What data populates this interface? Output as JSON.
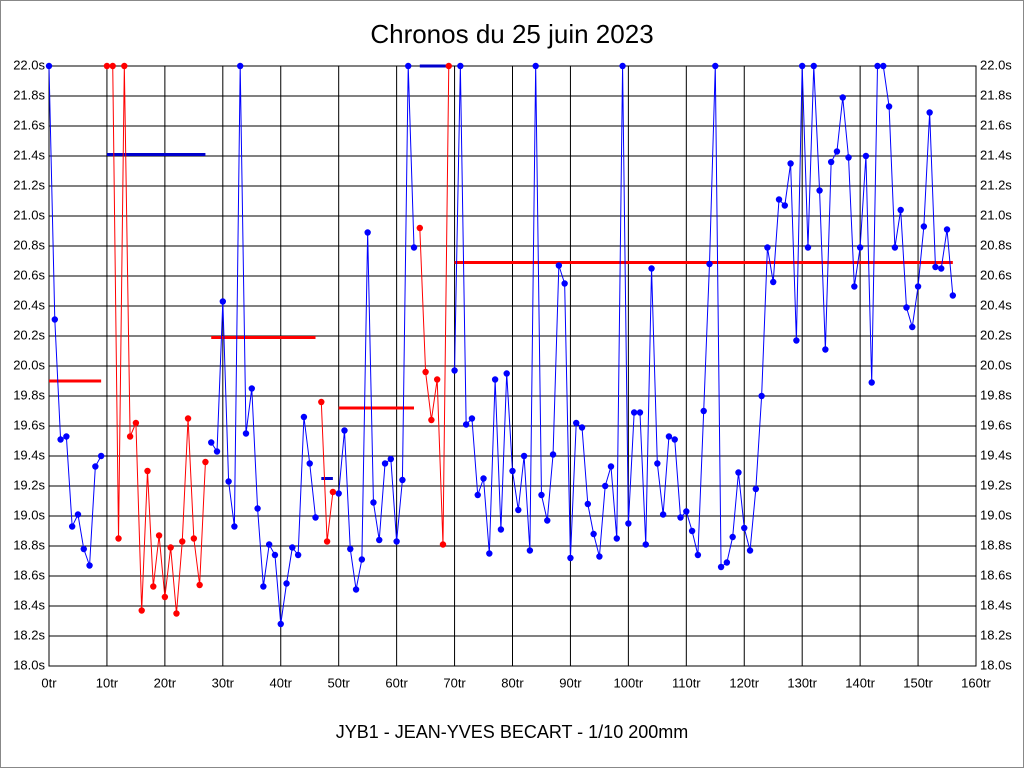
{
  "chart_data": {
    "type": "line",
    "title": "Chronos du 25 juin 2023",
    "footer": "JYB1 - JEAN-YVES BECART - 1/10 200mm",
    "grid": true,
    "xlim": [
      0,
      160
    ],
    "ylim": [
      18.0,
      22.0
    ],
    "xticks": [
      {
        "value": 0,
        "label": "0tr"
      },
      {
        "value": 10,
        "label": "10tr"
      },
      {
        "value": 20,
        "label": "20tr"
      },
      {
        "value": 30,
        "label": "30tr"
      },
      {
        "value": 40,
        "label": "40tr"
      },
      {
        "value": 50,
        "label": "50tr"
      },
      {
        "value": 60,
        "label": "60tr"
      },
      {
        "value": 70,
        "label": "70tr"
      },
      {
        "value": 80,
        "label": "80tr"
      },
      {
        "value": 90,
        "label": "90tr"
      },
      {
        "value": 100,
        "label": "100tr"
      },
      {
        "value": 110,
        "label": "110tr"
      },
      {
        "value": 120,
        "label": "120tr"
      },
      {
        "value": 130,
        "label": "130tr"
      },
      {
        "value": 140,
        "label": "140tr"
      },
      {
        "value": 150,
        "label": "150tr"
      },
      {
        "value": 160,
        "label": "160tr"
      }
    ],
    "yticks": [
      {
        "value": 18.0,
        "label": "18.0s"
      },
      {
        "value": 18.2,
        "label": "18.2s"
      },
      {
        "value": 18.4,
        "label": "18.4s"
      },
      {
        "value": 18.6,
        "label": "18.6s"
      },
      {
        "value": 18.8,
        "label": "18.8s"
      },
      {
        "value": 19.0,
        "label": "19.0s"
      },
      {
        "value": 19.2,
        "label": "19.2s"
      },
      {
        "value": 19.4,
        "label": "19.4s"
      },
      {
        "value": 19.6,
        "label": "19.6s"
      },
      {
        "value": 19.8,
        "label": "19.8s"
      },
      {
        "value": 20.0,
        "label": "20.0s"
      },
      {
        "value": 20.2,
        "label": "20.2s"
      },
      {
        "value": 20.4,
        "label": "20.4s"
      },
      {
        "value": 20.6,
        "label": "20.6s"
      },
      {
        "value": 20.8,
        "label": "20.8s"
      },
      {
        "value": 21.0,
        "label": "21.0s"
      },
      {
        "value": 21.2,
        "label": "21.2s"
      },
      {
        "value": 21.4,
        "label": "21.4s"
      },
      {
        "value": 21.6,
        "label": "21.6s"
      },
      {
        "value": 21.8,
        "label": "21.8s"
      },
      {
        "value": 22.0,
        "label": "22.0s"
      }
    ],
    "x": [
      0,
      1,
      2,
      3,
      4,
      5,
      6,
      7,
      8,
      9,
      10,
      11,
      12,
      13,
      14,
      15,
      16,
      17,
      18,
      19,
      20,
      21,
      22,
      23,
      24,
      25,
      26,
      27,
      28,
      29,
      30,
      31,
      32,
      33,
      34,
      35,
      36,
      37,
      38,
      39,
      40,
      41,
      42,
      43,
      44,
      45,
      46,
      47,
      48,
      49,
      50,
      51,
      52,
      53,
      54,
      55,
      56,
      57,
      58,
      59,
      60,
      61,
      62,
      63,
      64,
      65,
      66,
      67,
      68,
      69,
      70,
      71,
      72,
      73,
      74,
      75,
      76,
      77,
      78,
      79,
      80,
      81,
      82,
      83,
      84,
      85,
      86,
      87,
      88,
      89,
      90,
      91,
      92,
      93,
      94,
      95,
      96,
      97,
      98,
      99,
      100,
      101,
      102,
      103,
      104,
      105,
      106,
      107,
      108,
      109,
      110,
      111,
      112,
      113,
      114,
      115,
      116,
      117,
      118,
      119,
      120,
      121,
      122,
      123,
      124,
      125,
      126,
      127,
      128,
      129,
      130,
      131,
      132,
      133,
      134,
      135,
      136,
      137,
      138,
      139,
      140,
      141,
      142,
      143,
      144,
      145,
      146,
      147,
      148,
      149,
      150,
      151,
      152,
      153,
      154,
      155,
      156
    ],
    "series": [
      {
        "color": "#0000ff",
        "values": [
          22.0,
          20.31,
          19.51,
          19.53,
          18.93,
          19.01,
          18.78,
          18.67,
          19.33,
          19.4,
          null,
          null,
          null,
          null,
          null,
          null,
          null,
          null,
          null,
          null,
          null,
          null,
          null,
          null,
          null,
          null,
          null,
          null,
          19.49,
          19.43,
          20.43,
          19.23,
          18.93,
          22.0,
          19.55,
          19.85,
          19.05,
          18.53,
          18.81,
          18.74,
          18.28,
          18.55,
          18.79,
          18.74,
          19.66,
          19.35,
          18.99,
          null,
          null,
          null,
          19.15,
          19.57,
          18.78,
          18.51,
          18.71,
          20.89,
          19.09,
          18.84,
          19.35,
          19.38,
          18.83,
          19.24,
          22.0,
          20.79,
          null,
          null,
          null,
          null,
          null,
          null,
          19.97,
          22.0,
          19.61,
          19.65,
          19.14,
          19.25,
          18.75,
          19.91,
          18.91,
          19.95,
          19.3,
          19.04,
          19.4,
          18.77,
          22.0,
          19.14,
          18.97,
          19.41,
          20.67,
          20.55,
          18.72,
          19.62,
          19.59,
          19.08,
          18.88,
          18.73,
          19.2,
          19.33,
          18.85,
          22.0,
          18.95,
          19.69,
          19.69,
          18.81,
          20.65,
          19.35,
          19.01,
          19.53,
          19.51,
          18.99,
          19.03,
          18.9,
          18.74,
          19.7,
          20.68,
          22.0,
          18.66,
          18.69,
          18.86,
          19.29,
          18.92,
          18.77,
          19.18,
          19.8,
          20.79,
          20.56,
          21.11,
          21.07,
          21.35,
          20.17,
          22.0,
          20.79,
          22.0,
          21.17,
          20.11,
          21.36,
          21.43,
          21.79,
          21.39,
          20.53,
          20.79,
          21.4,
          19.89,
          22.0,
          22.0,
          21.73,
          20.79,
          21.04,
          20.39,
          20.26,
          20.53,
          20.93,
          21.69,
          20.66,
          20.65,
          20.91,
          20.47
        ]
      },
      {
        "color": "#ff0000",
        "values": [
          null,
          null,
          null,
          null,
          null,
          null,
          null,
          null,
          null,
          null,
          22.0,
          22.0,
          18.85,
          22.0,
          19.53,
          19.62,
          18.37,
          19.3,
          18.53,
          18.87,
          18.46,
          18.79,
          18.35,
          18.83,
          19.65,
          18.85,
          18.54,
          19.36,
          null,
          null,
          null,
          null,
          null,
          null,
          null,
          null,
          null,
          null,
          null,
          null,
          null,
          null,
          null,
          null,
          null,
          null,
          null,
          19.76,
          18.83,
          19.16,
          null,
          null,
          null,
          null,
          null,
          null,
          null,
          null,
          null,
          null,
          null,
          null,
          null,
          null,
          20.92,
          19.96,
          19.64,
          19.91,
          18.81,
          22.0,
          null,
          null,
          null,
          null,
          null,
          null,
          null,
          null,
          null,
          null,
          null,
          null,
          null,
          null,
          null,
          null,
          null,
          null,
          null,
          null,
          null,
          null,
          null,
          null,
          null,
          null,
          null,
          null,
          null,
          null,
          null,
          null,
          null,
          null,
          null,
          null,
          null,
          null,
          null,
          null,
          null,
          null,
          null,
          null,
          null,
          null,
          null,
          null,
          null,
          null,
          null,
          null,
          null,
          null,
          null,
          null,
          null,
          null,
          null,
          null,
          null,
          null,
          null,
          null,
          null,
          null,
          null,
          null,
          null,
          null,
          null,
          null,
          null,
          null,
          null,
          null,
          null,
          null,
          null,
          null,
          null,
          null,
          null,
          null,
          null,
          null,
          null
        ]
      }
    ],
    "mean_lines": [
      {
        "color": "#ff0000",
        "x": [
          0,
          9
        ],
        "value": 19.9
      },
      {
        "color": "#0000cc",
        "x": [
          10,
          27
        ],
        "value": 21.41
      },
      {
        "color": "#ff0000",
        "x": [
          28,
          46
        ],
        "value": 20.19
      },
      {
        "color": "#0000cc",
        "x": [
          47,
          49
        ],
        "value": 19.25
      },
      {
        "color": "#ff0000",
        "x": [
          50,
          63
        ],
        "value": 19.72
      },
      {
        "color": "#0000cc",
        "x": [
          64,
          69
        ],
        "value": 22.0
      },
      {
        "color": "#ff0000",
        "x": [
          70,
          156
        ],
        "value": 20.69
      }
    ]
  }
}
